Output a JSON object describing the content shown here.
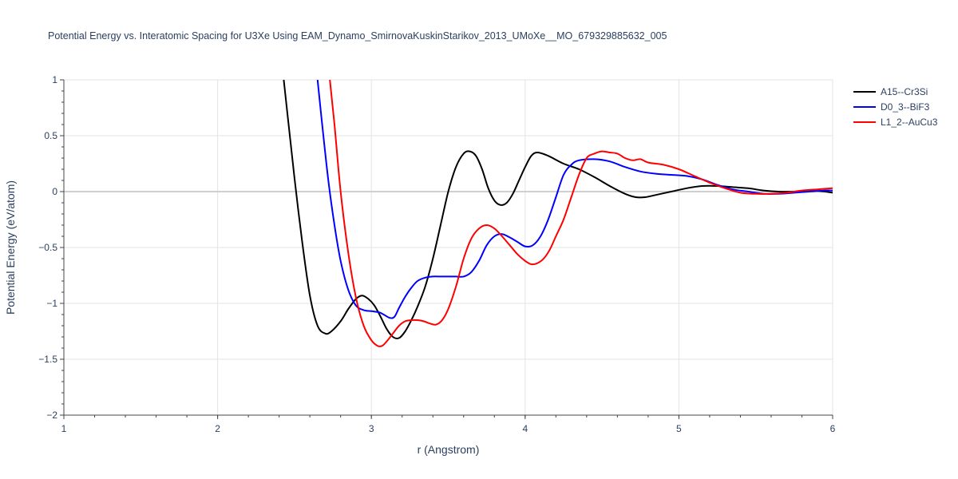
{
  "chart_data": {
    "type": "line",
    "title": "Potential Energy vs. Interatomic Spacing for U3Xe Using EAM_Dynamo_SmirnovaKuskinStarikov_2013_UMoXe__MO_679329885632_005",
    "xlabel": "r (Angstrom)",
    "ylabel": "Potential Energy (eV/atom)",
    "xlim": [
      1,
      6
    ],
    "ylim": [
      -2,
      1
    ],
    "xticks": [
      1,
      2,
      3,
      4,
      5,
      6
    ],
    "xtick_labels": [
      "1",
      "2",
      "3",
      "4",
      "5",
      "6"
    ],
    "yticks": [
      -2,
      -1.5,
      -1,
      -0.5,
      0,
      0.5,
      1
    ],
    "ytick_labels": [
      "−2",
      "−1.5",
      "−1",
      "−0.5",
      "0",
      "0.5",
      "1"
    ],
    "grid": true,
    "legend_position": "top-right",
    "series": [
      {
        "name": "A15--Cr3Si",
        "color": "#000000",
        "x": [
          2.43,
          2.46,
          2.5,
          2.55,
          2.6,
          2.65,
          2.7,
          2.74,
          2.8,
          2.85,
          2.9,
          2.94,
          2.98,
          3.02,
          3.06,
          3.1,
          3.14,
          3.18,
          3.22,
          3.26,
          3.3,
          3.35,
          3.4,
          3.45,
          3.5,
          3.55,
          3.6,
          3.64,
          3.68,
          3.72,
          3.76,
          3.8,
          3.84,
          3.88,
          3.92,
          3.96,
          4.0,
          4.04,
          4.08,
          4.15,
          4.25,
          4.35,
          4.45,
          4.55,
          4.65,
          4.72,
          4.78,
          4.85,
          4.95,
          5.05,
          5.15,
          5.25,
          5.35,
          5.45,
          5.55,
          5.65,
          5.75,
          5.85,
          5.95,
          6.0
        ],
        "y": [
          1.0,
          0.62,
          0.12,
          -0.45,
          -0.93,
          -1.2,
          -1.27,
          -1.25,
          -1.16,
          -1.05,
          -0.96,
          -0.93,
          -0.96,
          -1.02,
          -1.12,
          -1.23,
          -1.3,
          -1.31,
          -1.25,
          -1.15,
          -1.03,
          -0.85,
          -0.6,
          -0.3,
          0.0,
          0.22,
          0.34,
          0.36,
          0.32,
          0.2,
          0.03,
          -0.08,
          -0.12,
          -0.1,
          -0.02,
          0.1,
          0.22,
          0.32,
          0.35,
          0.32,
          0.25,
          0.2,
          0.13,
          0.05,
          -0.02,
          -0.05,
          -0.05,
          -0.03,
          0.0,
          0.03,
          0.05,
          0.05,
          0.04,
          0.03,
          0.01,
          0.0,
          0.0,
          0.01,
          0.0,
          -0.01
        ]
      },
      {
        "name": "D0_3--BiF3",
        "color": "#0000ff",
        "x": [
          2.65,
          2.68,
          2.72,
          2.76,
          2.8,
          2.85,
          2.9,
          2.95,
          3.0,
          3.05,
          3.08,
          3.12,
          3.15,
          3.18,
          3.22,
          3.26,
          3.3,
          3.35,
          3.4,
          3.45,
          3.5,
          3.55,
          3.6,
          3.65,
          3.7,
          3.75,
          3.8,
          3.85,
          3.9,
          3.95,
          4.0,
          4.05,
          4.1,
          4.15,
          4.2,
          4.25,
          4.3,
          4.35,
          4.45,
          4.55,
          4.65,
          4.75,
          4.85,
          4.95,
          5.05,
          5.15,
          5.25,
          5.35,
          5.45,
          5.55,
          5.65,
          5.75,
          5.85,
          5.95,
          6.0
        ],
        "y": [
          1.0,
          0.6,
          0.1,
          -0.3,
          -0.62,
          -0.88,
          -1.02,
          -1.06,
          -1.07,
          -1.08,
          -1.1,
          -1.13,
          -1.12,
          -1.04,
          -0.94,
          -0.86,
          -0.8,
          -0.77,
          -0.76,
          -0.76,
          -0.76,
          -0.76,
          -0.76,
          -0.72,
          -0.62,
          -0.48,
          -0.4,
          -0.38,
          -0.41,
          -0.45,
          -0.49,
          -0.48,
          -0.4,
          -0.25,
          -0.05,
          0.15,
          0.24,
          0.28,
          0.29,
          0.27,
          0.22,
          0.18,
          0.16,
          0.15,
          0.14,
          0.11,
          0.06,
          0.02,
          0.0,
          -0.02,
          -0.02,
          -0.01,
          0.0,
          0.01,
          0.01
        ]
      },
      {
        "name": "L1_2--AuCu3",
        "color": "#ff0000",
        "x": [
          2.73,
          2.76,
          2.8,
          2.85,
          2.9,
          2.95,
          3.0,
          3.04,
          3.07,
          3.1,
          3.14,
          3.18,
          3.22,
          3.26,
          3.3,
          3.34,
          3.38,
          3.42,
          3.46,
          3.5,
          3.55,
          3.6,
          3.65,
          3.7,
          3.75,
          3.8,
          3.85,
          3.9,
          3.95,
          4.0,
          4.04,
          4.08,
          4.12,
          4.16,
          4.2,
          4.25,
          4.3,
          4.35,
          4.4,
          4.45,
          4.5,
          4.55,
          4.6,
          4.65,
          4.7,
          4.75,
          4.8,
          4.9,
          5.0,
          5.1,
          5.2,
          5.3,
          5.4,
          5.5,
          5.6,
          5.7,
          5.8,
          5.9,
          6.0
        ],
        "y": [
          1.0,
          0.6,
          0.0,
          -0.55,
          -0.95,
          -1.2,
          -1.33,
          -1.38,
          -1.38,
          -1.34,
          -1.27,
          -1.2,
          -1.16,
          -1.15,
          -1.15,
          -1.16,
          -1.18,
          -1.19,
          -1.15,
          -1.05,
          -0.85,
          -0.6,
          -0.42,
          -0.33,
          -0.3,
          -0.33,
          -0.4,
          -0.48,
          -0.56,
          -0.62,
          -0.65,
          -0.64,
          -0.6,
          -0.52,
          -0.4,
          -0.25,
          -0.05,
          0.15,
          0.3,
          0.34,
          0.36,
          0.35,
          0.34,
          0.3,
          0.28,
          0.29,
          0.26,
          0.24,
          0.2,
          0.14,
          0.08,
          0.03,
          -0.01,
          -0.02,
          -0.02,
          -0.01,
          0.01,
          0.02,
          0.03
        ]
      }
    ]
  }
}
